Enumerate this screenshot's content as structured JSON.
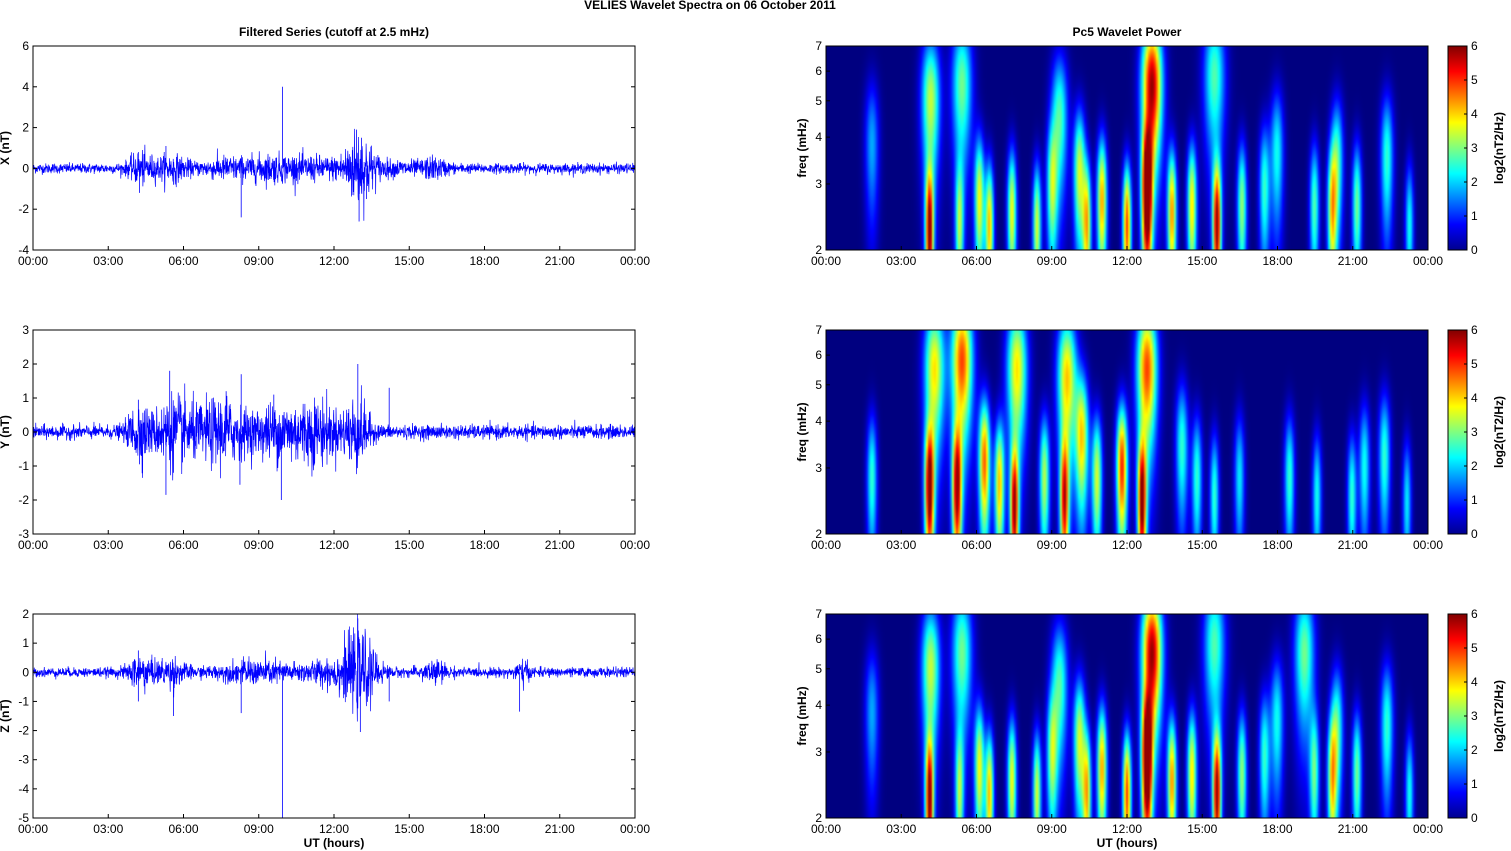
{
  "figure": {
    "suptitle": "VELIES Wavelet Spectra on 06 October   2011",
    "left_title": "Filtered Series (cutoff at 2.5 mHz)",
    "right_title": "Pc5 Wavelet Power",
    "xlabel": "UT (hours)",
    "x_tick_labels": [
      "00:00",
      "03:00",
      "06:00",
      "09:00",
      "12:00",
      "15:00",
      "18:00",
      "21:00",
      "00:00"
    ],
    "freq_label": "freq (mHz)",
    "colorbar_label": "log2(nT2/Hz)"
  },
  "colors": {
    "trace": "#0000ff",
    "background": "#00008f",
    "axis": "#000000"
  },
  "chart_data": [
    {
      "type": "line",
      "component": "X",
      "ylabel": "X (nT)",
      "xlim": [
        0,
        24
      ],
      "ylim": [
        -4,
        6
      ],
      "yticks": [
        -4,
        -2,
        0,
        2,
        4,
        6
      ],
      "series": [
        {
          "noise": 0.12,
          "bursts": [
            {
              "t": 4.3,
              "w": 0.5,
              "a": 0.3
            },
            {
              "t": 5.5,
              "w": 0.7,
              "a": 0.25
            },
            {
              "t": 7.5,
              "w": 0.8,
              "a": 0.15
            },
            {
              "t": 9.5,
              "w": 1.5,
              "a": 0.25
            },
            {
              "t": 13.0,
              "w": 0.6,
              "a": 0.8
            },
            {
              "t": 11.5,
              "w": 1.0,
              "a": 0.15
            },
            {
              "t": 14.5,
              "w": 1.5,
              "a": 0.1
            },
            {
              "t": 16.0,
              "w": 0.5,
              "a": 0.15
            }
          ],
          "spikes": [
            {
              "t": 4.2,
              "v": 0.8
            },
            {
              "t": 4.25,
              "v": -1.2
            },
            {
              "t": 5.3,
              "v": 1.1
            },
            {
              "t": 5.6,
              "v": -0.8
            },
            {
              "t": 8.3,
              "v": -2.4
            },
            {
              "t": 9.95,
              "v": 4.0
            },
            {
              "t": 10.5,
              "v": 0.5
            },
            {
              "t": 12.9,
              "v": 1.9
            },
            {
              "t": 13.0,
              "v": -2.6
            },
            {
              "t": 13.1,
              "v": 1.5
            },
            {
              "t": 13.3,
              "v": -1.5
            }
          ]
        }
      ]
    },
    {
      "type": "line",
      "component": "Y",
      "ylabel": "Y (nT)",
      "xlim": [
        0,
        24
      ],
      "ylim": [
        -3,
        3
      ],
      "yticks": [
        -3,
        -2,
        -1,
        0,
        1,
        2,
        3
      ],
      "series": [
        {
          "noise": 0.1,
          "bursts": [
            {
              "t": 4.2,
              "w": 0.4,
              "a": 0.35
            },
            {
              "t": 5.5,
              "w": 0.8,
              "a": 0.35
            },
            {
              "t": 7.6,
              "w": 0.8,
              "a": 0.3
            },
            {
              "t": 10.0,
              "w": 1.6,
              "a": 0.35
            },
            {
              "t": 12.9,
              "w": 0.5,
              "a": 0.45
            },
            {
              "t": 11.5,
              "w": 0.8,
              "a": 0.25
            },
            {
              "t": 6.5,
              "w": 1.2,
              "a": 0.2
            }
          ],
          "spikes": [
            {
              "t": 4.2,
              "v": 0.95
            },
            {
              "t": 4.25,
              "v": -0.95
            },
            {
              "t": 5.45,
              "v": 1.8
            },
            {
              "t": 5.3,
              "v": -1.85
            },
            {
              "t": 7.7,
              "v": 1.2
            },
            {
              "t": 8.3,
              "v": 1.7
            },
            {
              "t": 8.25,
              "v": -1.55
            },
            {
              "t": 9.9,
              "v": -2.0
            },
            {
              "t": 9.6,
              "v": 1.1
            },
            {
              "t": 12.95,
              "v": 2.0
            },
            {
              "t": 12.7,
              "v": -0.8
            },
            {
              "t": 14.2,
              "v": 1.3
            }
          ]
        }
      ]
    },
    {
      "type": "line",
      "component": "Z",
      "ylabel": "Z (nT)",
      "xlim": [
        0,
        24
      ],
      "ylim": [
        -5,
        2
      ],
      "yticks": [
        -5,
        -4,
        -3,
        -2,
        -1,
        0,
        1,
        2
      ],
      "series": [
        {
          "noise": 0.08,
          "bursts": [
            {
              "t": 4.3,
              "w": 0.5,
              "a": 0.25
            },
            {
              "t": 5.5,
              "w": 0.6,
              "a": 0.2
            },
            {
              "t": 9.0,
              "w": 1.6,
              "a": 0.15
            },
            {
              "t": 13.0,
              "w": 0.7,
              "a": 0.6
            },
            {
              "t": 11.8,
              "w": 1.0,
              "a": 0.15
            },
            {
              "t": 16.0,
              "w": 0.5,
              "a": 0.15
            },
            {
              "t": 19.5,
              "w": 0.3,
              "a": 0.15
            }
          ],
          "spikes": [
            {
              "t": 4.2,
              "v": 0.75
            },
            {
              "t": 4.2,
              "v": -1.0
            },
            {
              "t": 5.6,
              "v": -1.5
            },
            {
              "t": 8.3,
              "v": -1.4
            },
            {
              "t": 9.95,
              "v": -5.0
            },
            {
              "t": 12.95,
              "v": 1.85
            },
            {
              "t": 13.05,
              "v": -2.05
            },
            {
              "t": 14.2,
              "v": -1.0
            },
            {
              "t": 19.4,
              "v": -1.35
            }
          ]
        }
      ]
    },
    {
      "type": "heatmap",
      "component": "X",
      "ylabel": "freq (mHz)",
      "xlim": [
        0,
        24
      ],
      "ylim": [
        2,
        7
      ],
      "yscale": "log",
      "yticks": [
        2,
        3,
        4,
        5,
        6,
        7
      ],
      "colorbar": {
        "label": "log2(nT2/Hz)",
        "range": [
          0,
          6
        ],
        "ticks": [
          0,
          1,
          2,
          3,
          4,
          5,
          6
        ],
        "colormap": "jet"
      },
      "blobs": [
        {
          "t": 1.8,
          "f": 3.8,
          "a": 1.8
        },
        {
          "t": 4.1,
          "f": 2.2,
          "a": 5.8
        },
        {
          "t": 4.15,
          "f": 5.0,
          "a": 3.5
        },
        {
          "t": 5.3,
          "f": 2.3,
          "a": 3.0
        },
        {
          "t": 5.4,
          "f": 5.5,
          "a": 3.0
        },
        {
          "t": 6.1,
          "f": 2.7,
          "a": 3.8
        },
        {
          "t": 6.5,
          "f": 2.3,
          "a": 4.2
        },
        {
          "t": 7.4,
          "f": 2.5,
          "a": 3.8
        },
        {
          "t": 8.4,
          "f": 2.3,
          "a": 3.6
        },
        {
          "t": 9.0,
          "f": 2.9,
          "a": 3.0
        },
        {
          "t": 9.3,
          "f": 4.5,
          "a": 2.8
        },
        {
          "t": 10.1,
          "f": 3.2,
          "a": 3.6
        },
        {
          "t": 10.4,
          "f": 2.3,
          "a": 4.0
        },
        {
          "t": 11.0,
          "f": 2.7,
          "a": 4.4
        },
        {
          "t": 12.0,
          "f": 2.3,
          "a": 5.0
        },
        {
          "t": 12.8,
          "f": 2.8,
          "a": 7.0
        },
        {
          "t": 13.0,
          "f": 5.5,
          "a": 6.0
        },
        {
          "t": 13.8,
          "f": 2.5,
          "a": 4.5
        },
        {
          "t": 14.6,
          "f": 2.6,
          "a": 4.0
        },
        {
          "t": 15.6,
          "f": 2.3,
          "a": 5.8
        },
        {
          "t": 15.5,
          "f": 5.8,
          "a": 2.8
        },
        {
          "t": 16.6,
          "f": 2.6,
          "a": 3.2
        },
        {
          "t": 17.5,
          "f": 2.9,
          "a": 2.6
        },
        {
          "t": 18.0,
          "f": 3.6,
          "a": 2.4
        },
        {
          "t": 19.5,
          "f": 2.6,
          "a": 2.8
        },
        {
          "t": 20.2,
          "f": 2.5,
          "a": 3.5
        },
        {
          "t": 20.4,
          "f": 3.4,
          "a": 2.8
        },
        {
          "t": 21.2,
          "f": 2.6,
          "a": 3.0
        },
        {
          "t": 22.4,
          "f": 3.5,
          "a": 2.6
        },
        {
          "t": 23.3,
          "f": 2.3,
          "a": 2.4
        }
      ]
    },
    {
      "type": "heatmap",
      "component": "Y",
      "ylabel": "freq (mHz)",
      "xlim": [
        0,
        24
      ],
      "ylim": [
        2,
        7
      ],
      "yscale": "log",
      "yticks": [
        2,
        3,
        4,
        5,
        6,
        7
      ],
      "colorbar": {
        "label": "log2(nT2/Hz)",
        "range": [
          0,
          6
        ],
        "ticks": [
          0,
          1,
          2,
          3,
          4,
          5,
          6
        ],
        "colormap": "jet"
      },
      "blobs": [
        {
          "t": 1.8,
          "f": 2.8,
          "a": 2.6
        },
        {
          "t": 4.1,
          "f": 2.6,
          "a": 6.0
        },
        {
          "t": 4.3,
          "f": 5.5,
          "a": 4.0
        },
        {
          "t": 5.2,
          "f": 2.6,
          "a": 5.6
        },
        {
          "t": 5.4,
          "f": 5.8,
          "a": 5.0
        },
        {
          "t": 6.3,
          "f": 3.1,
          "a": 4.8
        },
        {
          "t": 6.9,
          "f": 2.7,
          "a": 4.2
        },
        {
          "t": 7.5,
          "f": 2.3,
          "a": 5.6
        },
        {
          "t": 7.6,
          "f": 5.5,
          "a": 4.0
        },
        {
          "t": 8.7,
          "f": 2.8,
          "a": 3.4
        },
        {
          "t": 9.5,
          "f": 2.4,
          "a": 5.0
        },
        {
          "t": 9.6,
          "f": 5.2,
          "a": 4.2
        },
        {
          "t": 10.2,
          "f": 3.6,
          "a": 4.0
        },
        {
          "t": 10.8,
          "f": 2.8,
          "a": 3.6
        },
        {
          "t": 11.8,
          "f": 3.0,
          "a": 5.2
        },
        {
          "t": 12.6,
          "f": 2.4,
          "a": 5.8
        },
        {
          "t": 12.8,
          "f": 5.5,
          "a": 5.0
        },
        {
          "t": 14.2,
          "f": 3.4,
          "a": 2.6
        },
        {
          "t": 14.8,
          "f": 2.8,
          "a": 2.6
        },
        {
          "t": 15.5,
          "f": 2.5,
          "a": 2.6
        },
        {
          "t": 16.5,
          "f": 2.8,
          "a": 2.2
        },
        {
          "t": 18.5,
          "f": 2.8,
          "a": 2.6
        },
        {
          "t": 19.6,
          "f": 2.5,
          "a": 2.4
        },
        {
          "t": 21.0,
          "f": 2.5,
          "a": 2.6
        },
        {
          "t": 21.5,
          "f": 3.0,
          "a": 2.4
        },
        {
          "t": 22.3,
          "f": 3.2,
          "a": 2.6
        },
        {
          "t": 23.2,
          "f": 2.4,
          "a": 2.2
        }
      ]
    },
    {
      "type": "heatmap",
      "component": "Z",
      "ylabel": "freq (mHz)",
      "xlim": [
        0,
        24
      ],
      "ylim": [
        2,
        7
      ],
      "yscale": "log",
      "yticks": [
        2,
        3,
        4,
        5,
        6,
        7
      ],
      "colorbar": {
        "label": "log2(nT2/Hz)",
        "range": [
          0,
          6
        ],
        "ticks": [
          0,
          1,
          2,
          3,
          4,
          5,
          6
        ],
        "colormap": "jet"
      },
      "blobs": [
        {
          "t": 1.8,
          "f": 3.8,
          "a": 1.8
        },
        {
          "t": 4.1,
          "f": 2.2,
          "a": 5.8
        },
        {
          "t": 4.15,
          "f": 5.0,
          "a": 3.5
        },
        {
          "t": 5.3,
          "f": 2.3,
          "a": 3.0
        },
        {
          "t": 5.4,
          "f": 5.5,
          "a": 3.0
        },
        {
          "t": 6.1,
          "f": 2.7,
          "a": 3.8
        },
        {
          "t": 6.5,
          "f": 2.3,
          "a": 4.2
        },
        {
          "t": 7.4,
          "f": 2.5,
          "a": 3.8
        },
        {
          "t": 8.4,
          "f": 2.3,
          "a": 3.6
        },
        {
          "t": 9.0,
          "f": 2.9,
          "a": 3.0
        },
        {
          "t": 9.3,
          "f": 4.5,
          "a": 2.8
        },
        {
          "t": 10.1,
          "f": 3.2,
          "a": 3.6
        },
        {
          "t": 10.4,
          "f": 2.3,
          "a": 4.0
        },
        {
          "t": 11.0,
          "f": 2.7,
          "a": 4.4
        },
        {
          "t": 12.0,
          "f": 2.3,
          "a": 5.0
        },
        {
          "t": 12.8,
          "f": 2.8,
          "a": 7.0
        },
        {
          "t": 13.0,
          "f": 5.5,
          "a": 6.0
        },
        {
          "t": 13.8,
          "f": 2.5,
          "a": 4.5
        },
        {
          "t": 14.6,
          "f": 2.6,
          "a": 4.0
        },
        {
          "t": 15.6,
          "f": 2.3,
          "a": 5.8
        },
        {
          "t": 15.5,
          "f": 5.8,
          "a": 2.8
        },
        {
          "t": 16.6,
          "f": 2.6,
          "a": 3.2
        },
        {
          "t": 17.5,
          "f": 2.9,
          "a": 2.6
        },
        {
          "t": 18.0,
          "f": 3.6,
          "a": 2.4
        },
        {
          "t": 19.1,
          "f": 5.5,
          "a": 3.0
        },
        {
          "t": 19.5,
          "f": 2.6,
          "a": 2.8
        },
        {
          "t": 20.2,
          "f": 2.5,
          "a": 3.5
        },
        {
          "t": 20.4,
          "f": 3.4,
          "a": 2.8
        },
        {
          "t": 21.2,
          "f": 2.6,
          "a": 3.0
        },
        {
          "t": 22.4,
          "f": 3.5,
          "a": 2.6
        },
        {
          "t": 23.3,
          "f": 2.3,
          "a": 2.4
        }
      ]
    }
  ]
}
